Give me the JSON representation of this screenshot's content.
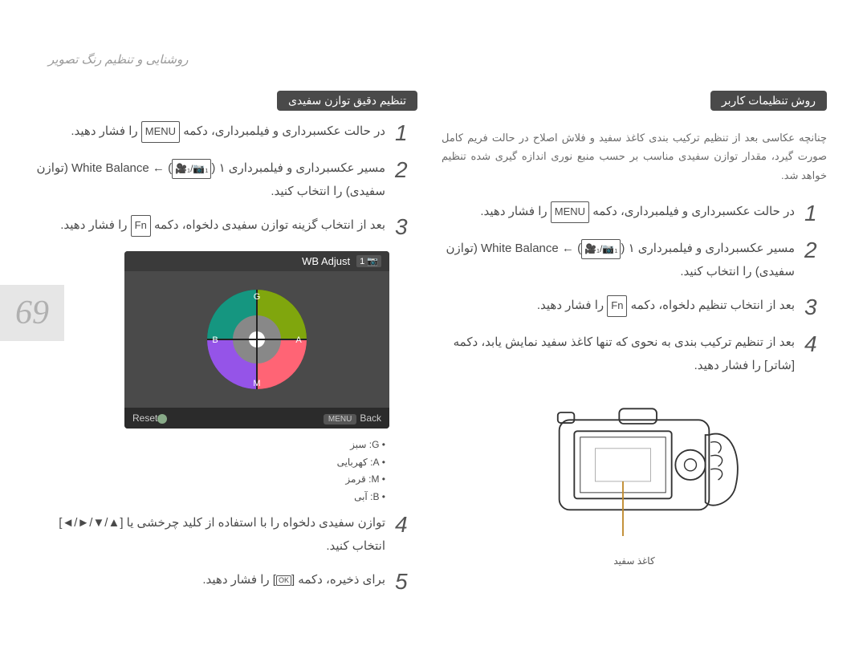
{
  "header": "روشنایی و تنظیم رنگ تصویر",
  "page_number": "69",
  "right_col": {
    "title": "تنظیم دقیق توازن سفیدی",
    "steps": [
      {
        "n": "1",
        "text_parts": [
          "در حالت عکسبرداری و فیلمبرداری، دکمه ",
          {
            "box": "MENU"
          },
          " را فشار دهید."
        ]
      },
      {
        "n": "2",
        "text_parts": [
          "مسیر عکسبرداری و فیلمبرداری ۱ (",
          {
            "icon": "🎥₁/📷₁"
          },
          ") ← ",
          {
            "latin": "White Balance"
          },
          " (توازن سفیدی) را انتخاب کنید."
        ]
      },
      {
        "n": "3",
        "text_parts": [
          "بعد از انتخاب گزینه توازن سفیدی دلخواه، دکمه ",
          {
            "box": "Fn"
          },
          " را فشار دهید."
        ]
      },
      {
        "n": "4",
        "text_parts": [
          "توازن سفیدی دلخواه را با استفاده از کلید چرخشی یا [",
          {
            "arrows": "◄/►/▼/▲"
          },
          "] انتخاب کنید."
        ]
      },
      {
        "n": "5",
        "text_parts": [
          "برای ذخیره، دکمه [",
          {
            "ok": "OK"
          },
          "] را فشار دهید."
        ]
      }
    ],
    "screen": {
      "title": "WB Adjust",
      "mode_badge": "📷 1",
      "back": "Back",
      "back_btn": "MENU",
      "reset": "Reset",
      "wheel": {
        "labels": {
          "top": "G",
          "right": "A",
          "bottom": "M",
          "left": "B"
        },
        "colors": {
          "top": "#00c000",
          "right": "#ff8c1a",
          "bottom": "#ff3cd0",
          "left": "#2a6cff",
          "ring_outer": "#222",
          "ring_inner": "#ddd",
          "center": "#ffffff"
        }
      }
    },
    "legend": [
      {
        "k": "G",
        "v": "سبز"
      },
      {
        "k": "A",
        "v": "کهربایی"
      },
      {
        "k": "M",
        "v": "قرمز"
      },
      {
        "k": "B",
        "v": "آبی"
      }
    ]
  },
  "left_col": {
    "title": "روش تنظیمات کاربر",
    "note": "چنانچه عکاسی بعد از تنظیم ترکیب بندی کاغذ سفید و فلاش اصلاح در حالت فریم کامل صورت گیرد، مقدار توازن سفیدی مناسب بر حسب منبع نوری اندازه گیری شده تنظیم خواهد شد.",
    "steps": [
      {
        "n": "1",
        "text_parts": [
          "در حالت عکسبرداری و فیلمبرداری، دکمه ",
          {
            "box": "MENU"
          },
          " را فشار دهید."
        ]
      },
      {
        "n": "2",
        "text_parts": [
          "مسیر عکسبرداری و فیلمبرداری ۱ (",
          {
            "icon": "🎥₁/📷₁"
          },
          ") ← ",
          {
            "latin": "White Balance"
          },
          " (توازن سفیدی) را انتخاب کنید."
        ]
      },
      {
        "n": "3",
        "text_parts": [
          "بعد از انتخاب تنظیم دلخواه، دکمه ",
          {
            "box": "Fn"
          },
          " را فشار دهید."
        ]
      },
      {
        "n": "4",
        "text_parts": [
          "بعد از تنظیم ترکیب بندی به نحوی که تنها کاغذ سفید نمایش یابد، دکمه [شاتر] را فشار دهید."
        ]
      }
    ],
    "illustration_caption": "کاغذ سفید"
  }
}
